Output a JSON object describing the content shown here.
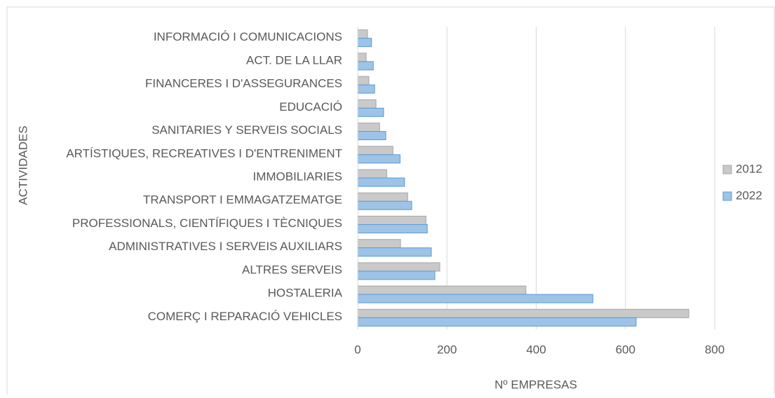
{
  "chart_data": {
    "type": "bar",
    "orientation": "horizontal",
    "xlabel": "Nº EMPRESAS",
    "ylabel": "ACTIVIDADES",
    "categories": [
      "INFORMACIÓ I COMUNICACIONS",
      "ACT. DE LA LLAR",
      "FINANCERES I D'ASSEGURANCES",
      "EDUCACIÓ",
      "SANITARIES Y SERVEIS SOCIALS",
      "ARTÍSTIQUES, RECREATIVES I D'ENTRENIMENT",
      "IMMOBILIARIES",
      "TRANSPORT I EMMAGATZEMATGE",
      "PROFESSIONALS, CIENTÍFIQUES I TÈCNIQUES",
      "ADMINISTRATIVES I SERVEIS AUXILIARS",
      "ALTRES SERVEIS",
      "HOSTALERIA",
      "COMERÇ I REPARACIÓ VEHICLES"
    ],
    "series": [
      {
        "name": "2012",
        "color": "#c9c9c9",
        "values": [
          22,
          19,
          25,
          41,
          49,
          79,
          65,
          112,
          153,
          96,
          184,
          377,
          742
        ]
      },
      {
        "name": "2022",
        "color": "#9dc3e6",
        "values": [
          31,
          35,
          38,
          58,
          63,
          95,
          105,
          121,
          156,
          165,
          173,
          527,
          624
        ]
      }
    ],
    "xlim": [
      0,
      800
    ],
    "xticks": [
      0,
      200,
      400,
      600,
      800
    ],
    "grid": true,
    "legend": "right"
  }
}
